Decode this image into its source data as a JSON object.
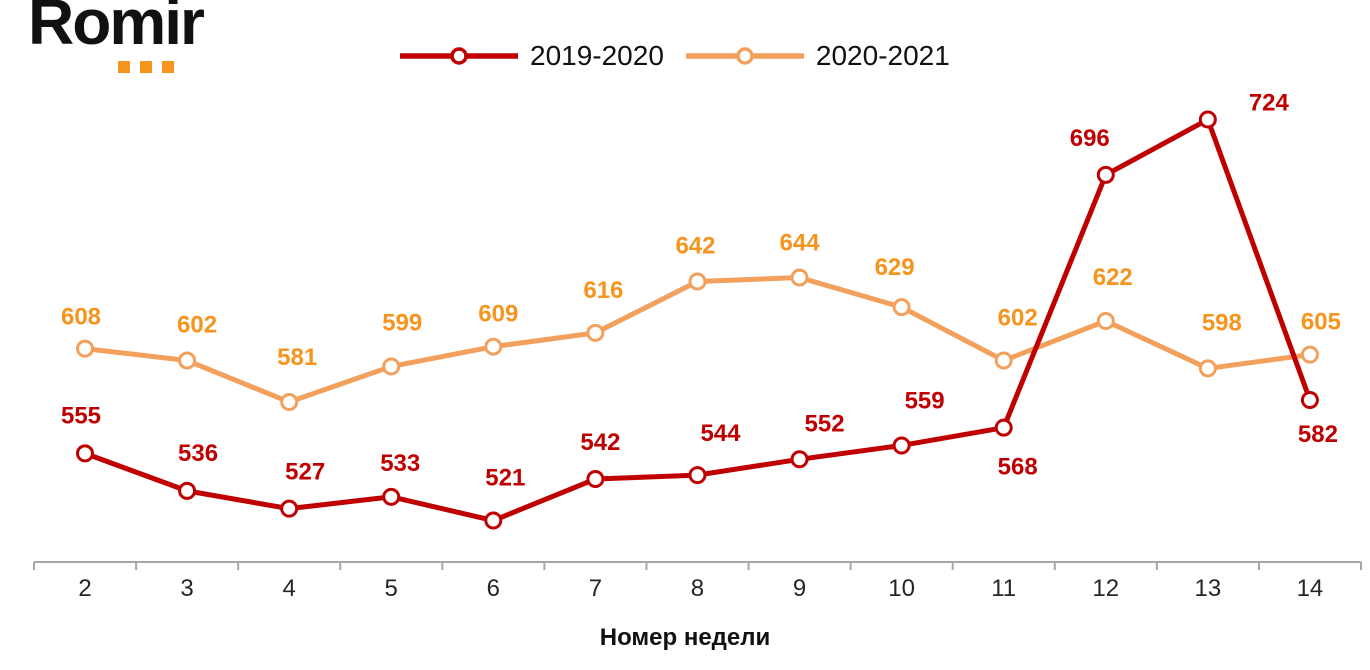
{
  "logo": {
    "text": "Romir"
  },
  "xaxis": {
    "title": "Номер недели"
  },
  "colors": {
    "red_line": "#C00000",
    "red_label": "#C00000",
    "orange_line": "#F2A05C",
    "orange_label": "#F7941E",
    "axis": "#A6A6A6",
    "tick_text": "#262626",
    "text": "#111111",
    "marker_fill": "#FFFFFF"
  },
  "chart_data": {
    "type": "line",
    "title": "",
    "xlabel": "Номер недели",
    "ylabel": "",
    "categories": [
      2,
      3,
      4,
      5,
      6,
      7,
      8,
      9,
      10,
      11,
      12,
      13,
      14
    ],
    "ylim": [
      500,
      785
    ],
    "grid": false,
    "legend_position": "top-center",
    "series": [
      {
        "name": "2019-2020",
        "line_color": "#C00000",
        "label_color": "#C00000",
        "values": [
          555,
          536,
          527,
          533,
          521,
          542,
          544,
          552,
          559,
          568,
          696,
          724,
          582
        ],
        "label_dx": [
          -4,
          11,
          16,
          9,
          12,
          5,
          23,
          25,
          23,
          14,
          -16,
          61,
          8
        ],
        "label_dy": [
          -38,
          -38,
          -37,
          -34,
          -43,
          -37,
          -42,
          -36,
          -45,
          39,
          -37,
          -17,
          34
        ]
      },
      {
        "name": "2020-2021",
        "line_color": "#F2A05C",
        "label_color": "#F7941E",
        "values": [
          608,
          602,
          581,
          599,
          609,
          616,
          642,
          644,
          629,
          602,
          622,
          598,
          605
        ],
        "label_dx": [
          -4,
          10,
          8,
          11,
          5,
          8,
          -2,
          0,
          -7,
          14,
          7,
          14,
          11
        ],
        "label_dy": [
          -32,
          -36,
          -45,
          -44,
          -33,
          -43,
          -36,
          -35,
          -40,
          -43,
          -44,
          -46,
          -33
        ]
      }
    ]
  }
}
